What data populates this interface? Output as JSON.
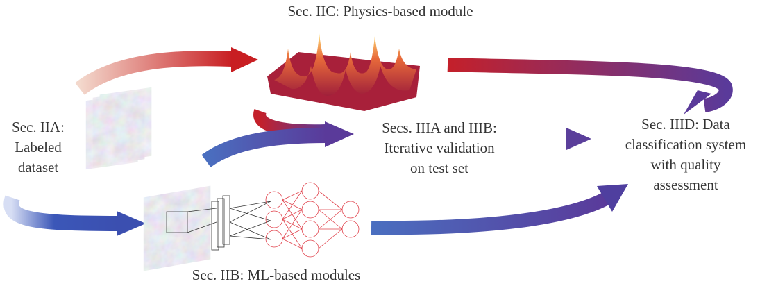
{
  "nodes": [
    {
      "lines": [
        "Sec. IIC: Physics-based module"
      ]
    },
    {
      "lines": [
        "Sec. IIA:",
        "Labeled",
        "dataset"
      ]
    },
    {
      "lines": [
        "Secs. IIIA and IIIB:",
        "Iterative validation",
        "on test set"
      ]
    },
    {
      "lines": [
        "Sec. IIID: Data",
        "classification system",
        "with quality",
        "assessment"
      ]
    },
    {
      "lines": [
        "Sec. IIB: ML-based modules"
      ]
    }
  ]
}
